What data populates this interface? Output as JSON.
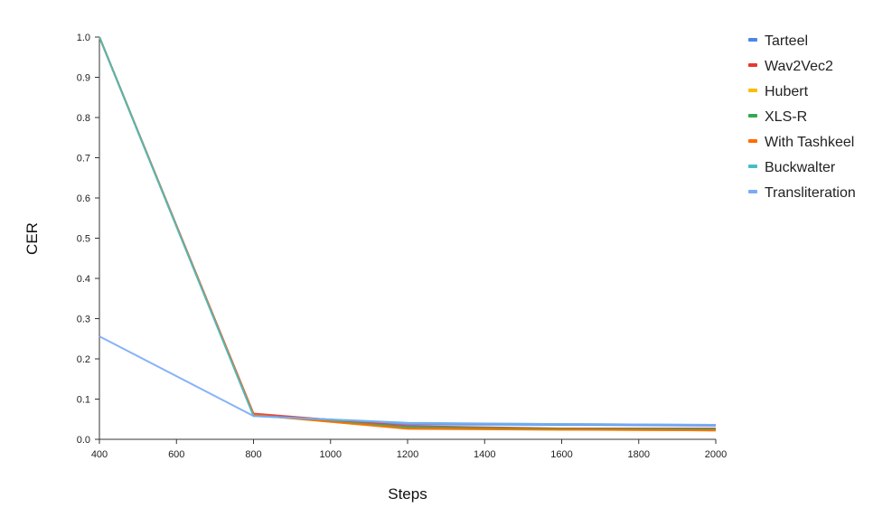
{
  "chart_data": {
    "type": "line",
    "title": "",
    "xlabel": "Steps",
    "ylabel": "CER",
    "xlim": [
      400,
      2000
    ],
    "ylim": [
      0.0,
      1.0
    ],
    "x_ticks": [
      400,
      600,
      800,
      1000,
      1200,
      1400,
      1600,
      1800,
      2000
    ],
    "y_ticks": [
      "0.0",
      "0.1",
      "0.2",
      "0.3",
      "0.4",
      "0.5",
      "0.6",
      "0.7",
      "0.8",
      "0.9",
      "1.0"
    ],
    "grid": false,
    "legend_position": "top-right",
    "x": [
      400,
      800,
      1200,
      1600,
      2000
    ],
    "series": [
      {
        "name": "Tarteel",
        "color": "#4a86e8",
        "values": [
          1.0,
          0.061,
          0.037,
          0.036,
          0.034
        ]
      },
      {
        "name": "Wav2Vec2",
        "color": "#e53935",
        "values": [
          1.0,
          0.064,
          0.033,
          0.027,
          0.027
        ]
      },
      {
        "name": "Hubert",
        "color": "#fbbc04",
        "values": [
          1.0,
          0.06,
          0.027,
          0.024,
          0.022
        ]
      },
      {
        "name": "XLS-R",
        "color": "#34a853",
        "values": [
          1.0,
          0.06,
          0.03,
          0.026,
          0.025
        ]
      },
      {
        "name": "With Tashkeel",
        "color": "#ff6d01",
        "values": [
          1.0,
          0.061,
          0.026,
          0.024,
          0.022
        ]
      },
      {
        "name": "Buckwalter",
        "color": "#46bdc6",
        "values": [
          1.0,
          0.058,
          0.041,
          0.038,
          0.036
        ]
      },
      {
        "name": "Transliteration",
        "color": "#7baaf7",
        "values": [
          0.256,
          0.058,
          0.04,
          0.038,
          0.036
        ]
      }
    ]
  }
}
